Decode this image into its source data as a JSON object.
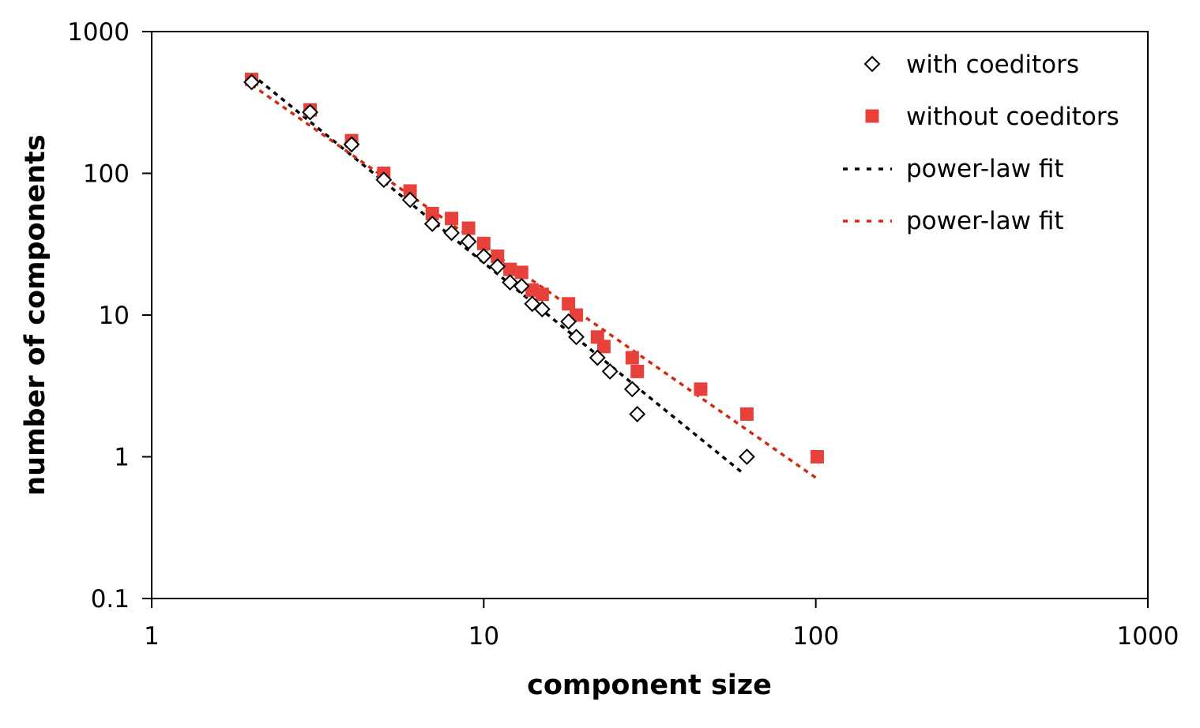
{
  "chart_data": {
    "type": "scatter",
    "title": "",
    "xlabel": "component size",
    "ylabel": "number of components",
    "xscale": "log",
    "yscale": "log",
    "xlim": [
      1,
      1000
    ],
    "ylim": [
      0.1,
      1000
    ],
    "x_ticks": [
      1,
      10,
      100,
      1000
    ],
    "x_tick_labels": [
      "1",
      "10",
      "100",
      "1000"
    ],
    "y_ticks": [
      0.1,
      1,
      10,
      100,
      1000
    ],
    "y_tick_labels": [
      "0.1",
      "1",
      "10",
      "100",
      "1000"
    ],
    "grid": false,
    "legend_position": "top-right",
    "series": [
      {
        "name": "with coeditors",
        "kind": "markers",
        "marker": "open-diamond",
        "color": "#000000",
        "points": [
          [
            2,
            440
          ],
          [
            3,
            270
          ],
          [
            4,
            160
          ],
          [
            5,
            90
          ],
          [
            6,
            65
          ],
          [
            7,
            44
          ],
          [
            8,
            38
          ],
          [
            9,
            33
          ],
          [
            10,
            26
          ],
          [
            11,
            22
          ],
          [
            12,
            17
          ],
          [
            13,
            16
          ],
          [
            14,
            12
          ],
          [
            15,
            11
          ],
          [
            18,
            9
          ],
          [
            19,
            7
          ],
          [
            22,
            5
          ],
          [
            24,
            4
          ],
          [
            28,
            3
          ],
          [
            29,
            2
          ],
          [
            62,
            1
          ]
        ]
      },
      {
        "name": "without coeditors",
        "kind": "markers",
        "marker": "filled-square",
        "color": "#e8413c",
        "points": [
          [
            2,
            460
          ],
          [
            3,
            280
          ],
          [
            4,
            170
          ],
          [
            5,
            100
          ],
          [
            6,
            75
          ],
          [
            7,
            52
          ],
          [
            8,
            48
          ],
          [
            9,
            41
          ],
          [
            10,
            32
          ],
          [
            11,
            26
          ],
          [
            12,
            21
          ],
          [
            13,
            20
          ],
          [
            14,
            15
          ],
          [
            15,
            14
          ],
          [
            18,
            12
          ],
          [
            19,
            10
          ],
          [
            22,
            7
          ],
          [
            23,
            6
          ],
          [
            28,
            5
          ],
          [
            29,
            4
          ],
          [
            45,
            3
          ],
          [
            62,
            2
          ],
          [
            101,
            1
          ]
        ]
      },
      {
        "name": "power-law fit",
        "kind": "dashed-line",
        "color": "#000000",
        "points": [
          [
            2,
            500
          ],
          [
            61,
            0.75
          ]
        ]
      },
      {
        "name": "power-law fit",
        "kind": "dashed-line",
        "color": "#d22a10",
        "points": [
          [
            2,
            420
          ],
          [
            101,
            0.7
          ]
        ]
      }
    ]
  }
}
